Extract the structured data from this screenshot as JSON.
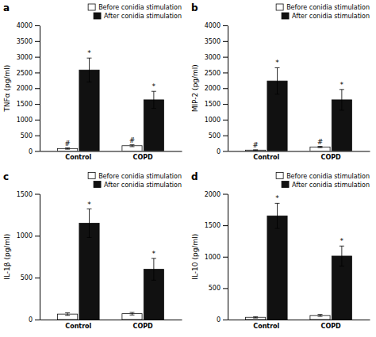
{
  "chart_data": [
    {
      "type": "bar",
      "title": "a",
      "ylabel": "TNFα (pg/ml)",
      "categories": [
        "Control",
        "COPD"
      ],
      "series": [
        {
          "name": "Before conidia stimulation",
          "color": "#ffffff",
          "values": [
            80,
            170
          ],
          "errors": [
            20,
            30
          ],
          "annotations": [
            "#",
            "#"
          ]
        },
        {
          "name": "After conidia stimulation",
          "color": "#111111",
          "values": [
            2580,
            1630
          ],
          "errors": [
            380,
            270
          ],
          "annotations": [
            "*",
            "*"
          ]
        }
      ],
      "ylim": [
        0,
        4000
      ],
      "yticks": [
        0,
        500,
        1000,
        1500,
        2000,
        2500,
        3000,
        3500,
        4000
      ],
      "legend": "upper right"
    },
    {
      "type": "bar",
      "title": "b",
      "ylabel": "MIP-2 (pg/ml)",
      "categories": [
        "Control",
        "COPD"
      ],
      "series": [
        {
          "name": "Before conidia stimulation",
          "color": "#ffffff",
          "values": [
            30,
            130
          ],
          "errors": [
            10,
            20
          ],
          "annotations": [
            "#",
            "#"
          ]
        },
        {
          "name": "After conidia stimulation",
          "color": "#111111",
          "values": [
            2230,
            1630
          ],
          "errors": [
            420,
            330
          ],
          "annotations": [
            "*",
            "*"
          ]
        }
      ],
      "ylim": [
        0,
        4000
      ],
      "yticks": [
        0,
        500,
        1000,
        1500,
        2000,
        2500,
        3000,
        3500,
        4000
      ],
      "legend": "upper right"
    },
    {
      "type": "bar",
      "title": "c",
      "ylabel": "IL-1β (pg/ml)",
      "categories": [
        "Control",
        "COPD"
      ],
      "series": [
        {
          "name": "Before conidia stimulation",
          "color": "#ffffff",
          "values": [
            65,
            70
          ],
          "errors": [
            15,
            15
          ]
        },
        {
          "name": "After conidia stimulation",
          "color": "#111111",
          "values": [
            1150,
            600
          ],
          "errors": [
            170,
            130
          ],
          "annotations": [
            "*",
            "*"
          ]
        }
      ],
      "ylim": [
        0,
        1500
      ],
      "yticks": [
        0,
        500,
        1000,
        1500
      ],
      "legend": "upper right"
    },
    {
      "type": "bar",
      "title": "d",
      "ylabel": "IL-10 (pg/ml)",
      "categories": [
        "Control",
        "COPD"
      ],
      "series": [
        {
          "name": "Before conidia stimulation",
          "color": "#ffffff",
          "values": [
            35,
            65
          ],
          "errors": [
            10,
            15
          ]
        },
        {
          "name": "After conidia stimulation",
          "color": "#111111",
          "values": [
            1650,
            1010
          ],
          "errors": [
            200,
            160
          ],
          "annotations": [
            "*",
            "*"
          ]
        }
      ],
      "ylim": [
        0,
        2000
      ],
      "yticks": [
        0,
        500,
        1000,
        1500,
        2000
      ],
      "legend": "upper right"
    }
  ]
}
